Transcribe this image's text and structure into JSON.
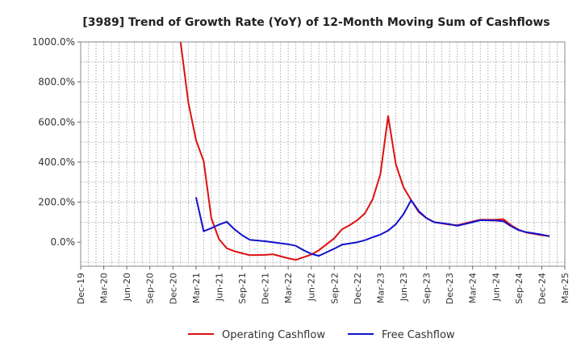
{
  "chart_data": {
    "type": "line",
    "title": "[3989]  Trend of Growth Rate (YoY) of 12-Month Moving Sum of Cashflows",
    "xlabel": "",
    "ylabel": "",
    "ylim": [
      -120,
      1000
    ],
    "y_ticks": [
      {
        "value": 1000,
        "label": "1000.0%"
      },
      {
        "value": 800,
        "label": "800.0%"
      },
      {
        "value": 600,
        "label": "600.0%"
      },
      {
        "value": 400,
        "label": "400.0%"
      },
      {
        "value": 200,
        "label": "200.0%"
      },
      {
        "value": 0,
        "label": "0.0%"
      }
    ],
    "x_ticks": [
      "Dec-19",
      "Mar-20",
      "Jun-20",
      "Sep-20",
      "Dec-20",
      "Mar-21",
      "Jun-21",
      "Sep-21",
      "Dec-21",
      "Mar-22",
      "Jun-22",
      "Sep-22",
      "Dec-22",
      "Mar-23",
      "Jun-23",
      "Sep-23",
      "Dec-23",
      "Mar-24",
      "Jun-24",
      "Sep-24",
      "Dec-24",
      "Mar-25"
    ],
    "grid": true,
    "legend_position": "bottom",
    "series": [
      {
        "name": "Operating Cashflow",
        "color": "#dd1111",
        "points": [
          {
            "x": "Jan-21",
            "y": 1000
          },
          {
            "x": "Feb-21",
            "y": 700
          },
          {
            "x": "Mar-21",
            "y": 510
          },
          {
            "x": "Apr-21",
            "y": 405
          },
          {
            "x": "May-21",
            "y": 120
          },
          {
            "x": "Jun-21",
            "y": 15
          },
          {
            "x": "Jul-21",
            "y": -30
          },
          {
            "x": "Aug-21",
            "y": -45
          },
          {
            "x": "Sep-21",
            "y": -55
          },
          {
            "x": "Oct-21",
            "y": -65
          },
          {
            "x": "Dec-21",
            "y": -63
          },
          {
            "x": "Jan-22",
            "y": -60
          },
          {
            "x": "Mar-22",
            "y": -80
          },
          {
            "x": "Apr-22",
            "y": -88
          },
          {
            "x": "Jun-22",
            "y": -62
          },
          {
            "x": "Jul-22",
            "y": -40
          },
          {
            "x": "Aug-22",
            "y": -10
          },
          {
            "x": "Sep-22",
            "y": 20
          },
          {
            "x": "Oct-22",
            "y": 65
          },
          {
            "x": "Nov-22",
            "y": 85
          },
          {
            "x": "Dec-22",
            "y": 110
          },
          {
            "x": "Jan-23",
            "y": 145
          },
          {
            "x": "Feb-23",
            "y": 215
          },
          {
            "x": "Mar-23",
            "y": 340
          },
          {
            "x": "Apr-23",
            "y": 630
          },
          {
            "x": "May-23",
            "y": 390
          },
          {
            "x": "Jun-23",
            "y": 275
          },
          {
            "x": "Jul-23",
            "y": 210
          },
          {
            "x": "Aug-23",
            "y": 150
          },
          {
            "x": "Sep-23",
            "y": 120
          },
          {
            "x": "Oct-23",
            "y": 100
          },
          {
            "x": "Dec-23",
            "y": 88
          },
          {
            "x": "Jan-24",
            "y": 85
          },
          {
            "x": "Mar-24",
            "y": 103
          },
          {
            "x": "Apr-24",
            "y": 112
          },
          {
            "x": "Jun-24",
            "y": 113
          },
          {
            "x": "Jul-24",
            "y": 115
          },
          {
            "x": "Aug-24",
            "y": 85
          },
          {
            "x": "Sep-24",
            "y": 62
          },
          {
            "x": "Oct-24",
            "y": 48
          },
          {
            "x": "Dec-24",
            "y": 35
          },
          {
            "x": "Jan-25",
            "y": 30
          }
        ]
      },
      {
        "name": "Free Cashflow",
        "color": "#1111cc",
        "points": [
          {
            "x": "Mar-21",
            "y": 225
          },
          {
            "x": "Apr-21",
            "y": 55
          },
          {
            "x": "May-21",
            "y": 70
          },
          {
            "x": "Jun-21",
            "y": 88
          },
          {
            "x": "Jul-21",
            "y": 102
          },
          {
            "x": "Aug-21",
            "y": 65
          },
          {
            "x": "Sep-21",
            "y": 35
          },
          {
            "x": "Oct-21",
            "y": 12
          },
          {
            "x": "Dec-21",
            "y": 5
          },
          {
            "x": "Jan-22",
            "y": 0
          },
          {
            "x": "Mar-22",
            "y": -10
          },
          {
            "x": "Apr-22",
            "y": -18
          },
          {
            "x": "May-22",
            "y": -40
          },
          {
            "x": "Jun-22",
            "y": -58
          },
          {
            "x": "Jul-22",
            "y": -68
          },
          {
            "x": "Aug-22",
            "y": -50
          },
          {
            "x": "Sep-22",
            "y": -32
          },
          {
            "x": "Oct-22",
            "y": -12
          },
          {
            "x": "Dec-22",
            "y": 0
          },
          {
            "x": "Jan-23",
            "y": 10
          },
          {
            "x": "Feb-23",
            "y": 25
          },
          {
            "x": "Mar-23",
            "y": 38
          },
          {
            "x": "Apr-23",
            "y": 58
          },
          {
            "x": "May-23",
            "y": 90
          },
          {
            "x": "Jun-23",
            "y": 140
          },
          {
            "x": "Jul-23",
            "y": 210
          },
          {
            "x": "Aug-23",
            "y": 155
          },
          {
            "x": "Sep-23",
            "y": 120
          },
          {
            "x": "Oct-23",
            "y": 100
          },
          {
            "x": "Dec-23",
            "y": 90
          },
          {
            "x": "Jan-24",
            "y": 82
          },
          {
            "x": "Mar-24",
            "y": 100
          },
          {
            "x": "Apr-24",
            "y": 110
          },
          {
            "x": "Jun-24",
            "y": 108
          },
          {
            "x": "Jul-24",
            "y": 105
          },
          {
            "x": "Aug-24",
            "y": 80
          },
          {
            "x": "Sep-24",
            "y": 60
          },
          {
            "x": "Oct-24",
            "y": 50
          },
          {
            "x": "Dec-24",
            "y": 38
          },
          {
            "x": "Jan-25",
            "y": 30
          }
        ]
      }
    ]
  }
}
